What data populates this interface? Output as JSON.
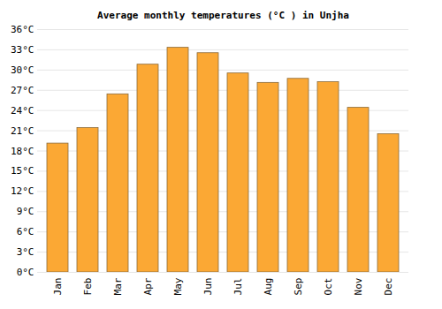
{
  "chart_data": {
    "type": "bar",
    "title": "Average monthly temperatures (°C ) in Unjha",
    "categories": [
      "Jan",
      "Feb",
      "Mar",
      "Apr",
      "May",
      "Jun",
      "Jul",
      "Aug",
      "Sep",
      "Oct",
      "Nov",
      "Dec"
    ],
    "values": [
      19.1,
      21.4,
      26.4,
      30.8,
      33.3,
      32.5,
      29.5,
      28.1,
      28.7,
      28.2,
      24.4,
      20.5
    ],
    "color": "#fba834",
    "ylim": [
      0,
      36
    ],
    "yticks": [
      {
        "value": 0,
        "label": "0°C"
      },
      {
        "value": 3,
        "label": "3°C"
      },
      {
        "value": 6,
        "label": "6°C"
      },
      {
        "value": 9,
        "label": "9°C"
      },
      {
        "value": 12,
        "label": "12°C"
      },
      {
        "value": 15,
        "label": "15°C"
      },
      {
        "value": 18,
        "label": "18°C"
      },
      {
        "value": 21,
        "label": "21°C"
      },
      {
        "value": 24,
        "label": "24°C"
      },
      {
        "value": 27,
        "label": "27°C"
      },
      {
        "value": 30,
        "label": "30°C"
      },
      {
        "value": 33,
        "label": "33°C"
      },
      {
        "value": 36,
        "label": "36°C"
      }
    ],
    "grid": true
  }
}
